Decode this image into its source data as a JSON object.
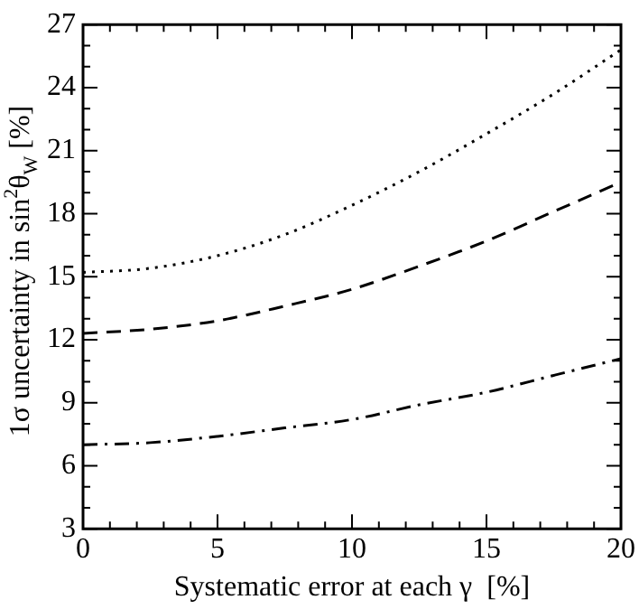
{
  "chart_data": {
    "type": "line",
    "xlabel": "Systematic error at each γ  [%]",
    "ylabel": "1σ uncertainty in sin$^{2}$θ$_{W}$  [%]",
    "x": [
      0,
      2.5,
      5,
      7.5,
      10,
      12.5,
      15,
      17.5,
      20
    ],
    "series": [
      {
        "color": "#000000",
        "line_style": "dotted",
        "values": [
          15.2,
          15.4,
          16.0,
          17.0,
          18.4,
          20.0,
          21.8,
          23.7,
          25.8
        ]
      },
      {
        "color": "#000000",
        "line_style": "dashed",
        "values": [
          12.3,
          12.5,
          12.9,
          13.6,
          14.4,
          15.5,
          16.7,
          18.1,
          19.5
        ]
      },
      {
        "color": "#000000",
        "line_style": "dashdot",
        "values": [
          7.0,
          7.1,
          7.4,
          7.8,
          8.2,
          8.9,
          9.5,
          10.3,
          11.1
        ]
      }
    ],
    "xlim": [
      0,
      20
    ],
    "xticks": [
      0,
      {
        "value": 1,
        "label": null
      },
      {
        "value": 2,
        "label": null
      },
      {
        "value": 3,
        "label": null
      },
      {
        "value": 4,
        "label": null
      },
      5,
      {
        "value": 6,
        "label": null
      },
      {
        "value": 7,
        "label": null
      },
      {
        "value": 8,
        "label": null
      },
      {
        "value": 9,
        "label": null
      },
      10,
      {
        "value": 11,
        "label": null
      },
      {
        "value": 12,
        "label": null
      },
      {
        "value": 13,
        "label": null
      },
      {
        "value": 14,
        "label": null
      },
      15,
      {
        "value": 16,
        "label": null
      },
      {
        "value": 17,
        "label": null
      },
      {
        "value": 18,
        "label": null
      },
      {
        "value": 19,
        "label": null
      },
      20
    ],
    "ylim": [
      3,
      27
    ],
    "yticks": [
      3,
      {
        "value": 4,
        "label": null
      },
      {
        "value": 5,
        "label": null
      },
      6,
      {
        "value": 7,
        "label": null
      },
      {
        "value": 8,
        "label": null
      },
      9,
      {
        "value": 10,
        "label": null
      },
      {
        "value": 11,
        "label": null
      },
      12,
      {
        "value": 13,
        "label": null
      },
      {
        "value": 14,
        "label": null
      },
      15,
      {
        "value": 16,
        "label": null
      },
      {
        "value": 17,
        "label": null
      },
      18,
      {
        "value": 19,
        "label": null
      },
      {
        "value": 20,
        "label": null
      },
      21,
      {
        "value": 22,
        "label": null
      },
      {
        "value": 23,
        "label": null
      },
      24,
      {
        "value": 25,
        "label": null
      },
      {
        "value": 26,
        "label": null
      },
      27
    ],
    "grid": false,
    "legend": false,
    "marker": "none"
  }
}
